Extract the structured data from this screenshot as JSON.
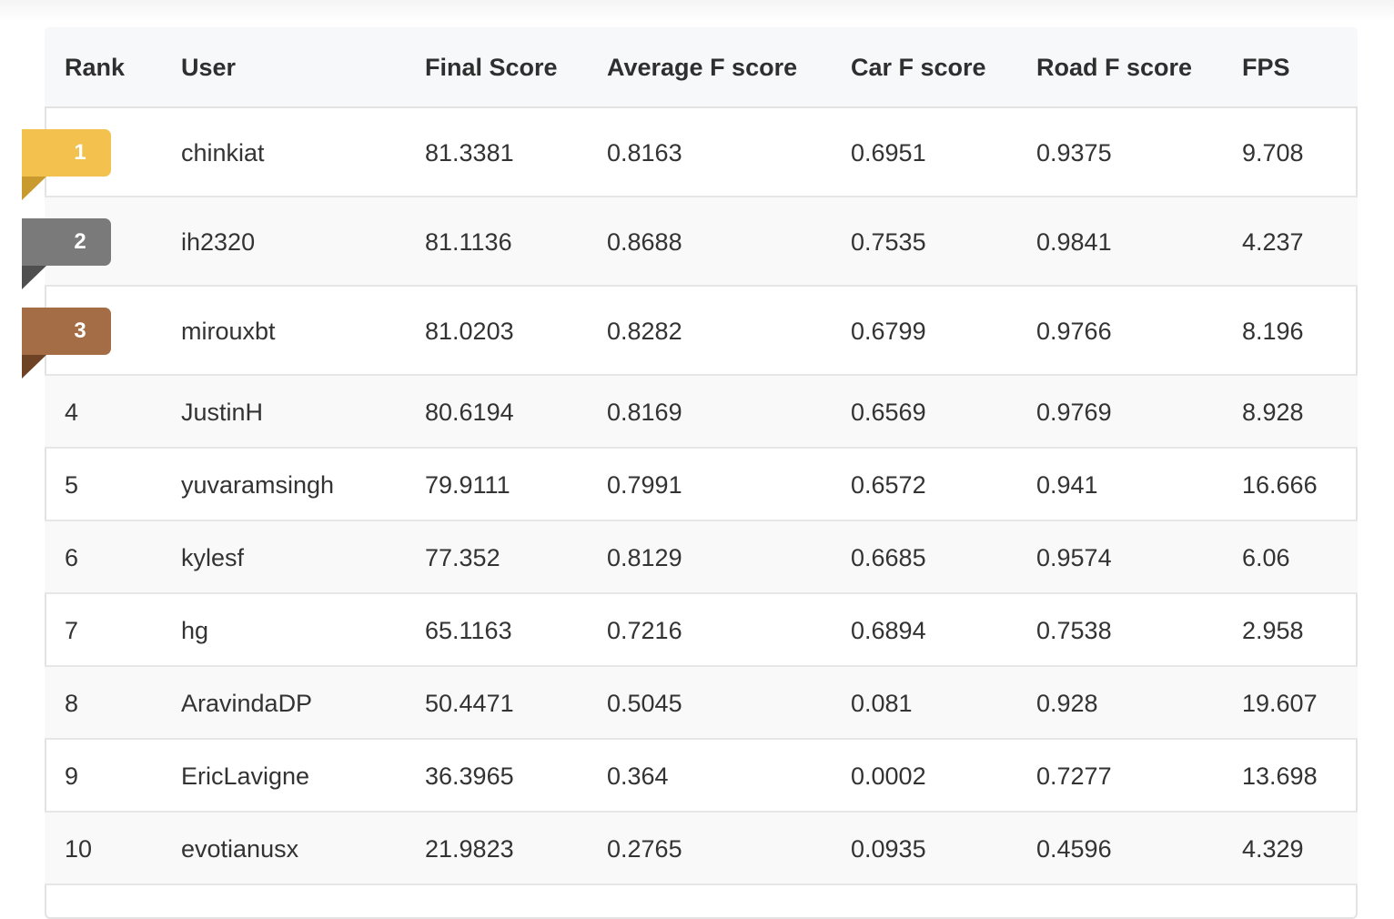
{
  "leaderboard": {
    "headers": [
      "Rank",
      "User",
      "Final Score",
      "Average F score",
      "Car F score",
      "Road F score",
      "FPS"
    ],
    "rows": [
      {
        "rank": "1",
        "user": "chinkiat",
        "final": "81.3381",
        "avg": "0.8163",
        "car": "0.6951",
        "road": "0.9375",
        "fps": "9.708",
        "medal": "gold"
      },
      {
        "rank": "2",
        "user": "ih2320",
        "final": "81.1136",
        "avg": "0.8688",
        "car": "0.7535",
        "road": "0.9841",
        "fps": "4.237",
        "medal": "silver"
      },
      {
        "rank": "3",
        "user": "mirouxbt",
        "final": "81.0203",
        "avg": "0.8282",
        "car": "0.6799",
        "road": "0.9766",
        "fps": "8.196",
        "medal": "bronze"
      },
      {
        "rank": "4",
        "user": "JustinH",
        "final": "80.6194",
        "avg": "0.8169",
        "car": "0.6569",
        "road": "0.9769",
        "fps": "8.928"
      },
      {
        "rank": "5",
        "user": "yuvaramsingh",
        "final": "79.9111",
        "avg": "0.7991",
        "car": "0.6572",
        "road": "0.941",
        "fps": "16.666"
      },
      {
        "rank": "6",
        "user": "kylesf",
        "final": "77.352",
        "avg": "0.8129",
        "car": "0.6685",
        "road": "0.9574",
        "fps": "6.06"
      },
      {
        "rank": "7",
        "user": "hg",
        "final": "65.1163",
        "avg": "0.7216",
        "car": "0.6894",
        "road": "0.7538",
        "fps": "2.958"
      },
      {
        "rank": "8",
        "user": "AravindaDP",
        "final": "50.4471",
        "avg": "0.5045",
        "car": "0.081",
        "road": "0.928",
        "fps": "19.607"
      },
      {
        "rank": "9",
        "user": "EricLavigne",
        "final": "36.3965",
        "avg": "0.364",
        "car": "0.0002",
        "road": "0.7277",
        "fps": "13.698"
      },
      {
        "rank": "10",
        "user": "evotianusx",
        "final": "21.9823",
        "avg": "0.2765",
        "car": "0.0935",
        "road": "0.4596",
        "fps": "4.329"
      }
    ]
  },
  "colors": {
    "gold": "#f2c14e",
    "gold_fold": "#c99a2e",
    "silver": "#7a7a7a",
    "silver_fold": "#4f4f4f",
    "bronze": "#a56d46",
    "bronze_fold": "#6e4325"
  }
}
